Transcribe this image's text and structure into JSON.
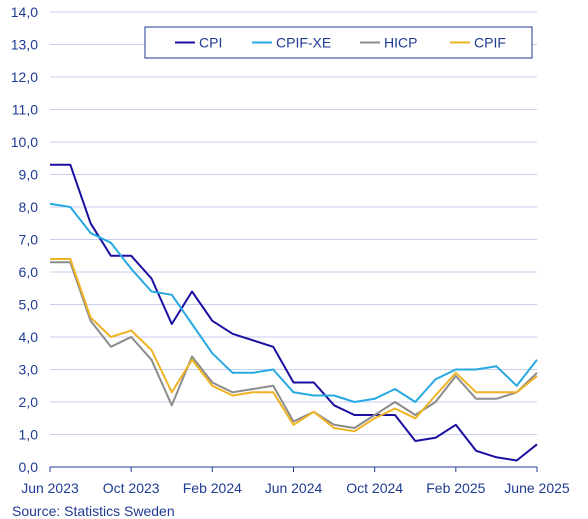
{
  "chart_data": {
    "type": "line",
    "ylim": [
      0,
      14
    ],
    "y_ticks": [
      "0,0",
      "1,0",
      "2,0",
      "3,0",
      "4,0",
      "5,0",
      "6,0",
      "7,0",
      "8,0",
      "9,0",
      "10,0",
      "11,0",
      "12,0",
      "13,0",
      "14,0"
    ],
    "x": [
      "2023-06",
      "2023-07",
      "2023-08",
      "2023-09",
      "2023-10",
      "2023-11",
      "2023-12",
      "2024-01",
      "2024-02",
      "2024-03",
      "2024-04",
      "2024-05",
      "2024-06",
      "2024-07",
      "2024-08",
      "2024-09",
      "2024-10",
      "2024-11",
      "2024-12",
      "2025-01",
      "2025-02",
      "2025-03",
      "2025-04",
      "2025-05",
      "2025-06"
    ],
    "x_tick_labels": [
      {
        "x": "2023-06",
        "label": "Jun 2023"
      },
      {
        "x": "2023-10",
        "label": "Oct 2023"
      },
      {
        "x": "2024-02",
        "label": "Feb 2024"
      },
      {
        "x": "2024-06",
        "label": "Jun 2024"
      },
      {
        "x": "2024-10",
        "label": "Oct 2024"
      },
      {
        "x": "2025-02",
        "label": "Feb 2025"
      },
      {
        "x": "2025-06",
        "label": "June 2025"
      }
    ],
    "grid": true,
    "legend_position": "top-right",
    "series": [
      {
        "name": "CPI",
        "color": "#1a0fa0",
        "values": [
          9.3,
          9.3,
          7.5,
          6.5,
          6.5,
          5.8,
          4.4,
          5.4,
          4.5,
          4.1,
          3.9,
          3.7,
          2.6,
          2.6,
          1.9,
          1.6,
          1.6,
          1.6,
          0.8,
          0.9,
          1.3,
          0.5,
          0.3,
          0.2,
          0.7
        ]
      },
      {
        "name": "CPIF-XE",
        "color": "#27a9e1",
        "values": [
          8.1,
          8.0,
          7.2,
          6.9,
          6.1,
          5.4,
          5.3,
          4.4,
          3.5,
          2.9,
          2.9,
          3.0,
          2.3,
          2.2,
          2.2,
          2.0,
          2.1,
          2.4,
          2.0,
          2.7,
          3.0,
          3.0,
          3.1,
          2.5,
          3.3
        ]
      },
      {
        "name": "HICP",
        "color": "#8c8c8c",
        "values": [
          6.3,
          6.3,
          4.5,
          3.7,
          4.0,
          3.3,
          1.9,
          3.4,
          2.6,
          2.3,
          2.4,
          2.5,
          1.4,
          1.7,
          1.3,
          1.2,
          1.6,
          2.0,
          1.6,
          2.0,
          2.8,
          2.1,
          2.1,
          2.3,
          2.9
        ]
      },
      {
        "name": "CPIF",
        "color": "#f0b323",
        "values": [
          6.4,
          6.4,
          4.6,
          4.0,
          4.2,
          3.6,
          2.3,
          3.3,
          2.5,
          2.2,
          2.3,
          2.3,
          1.3,
          1.7,
          1.2,
          1.1,
          1.5,
          1.8,
          1.5,
          2.2,
          2.9,
          2.3,
          2.3,
          2.3,
          2.8
        ]
      }
    ]
  },
  "source_text": "Source: Statistics Sweden"
}
